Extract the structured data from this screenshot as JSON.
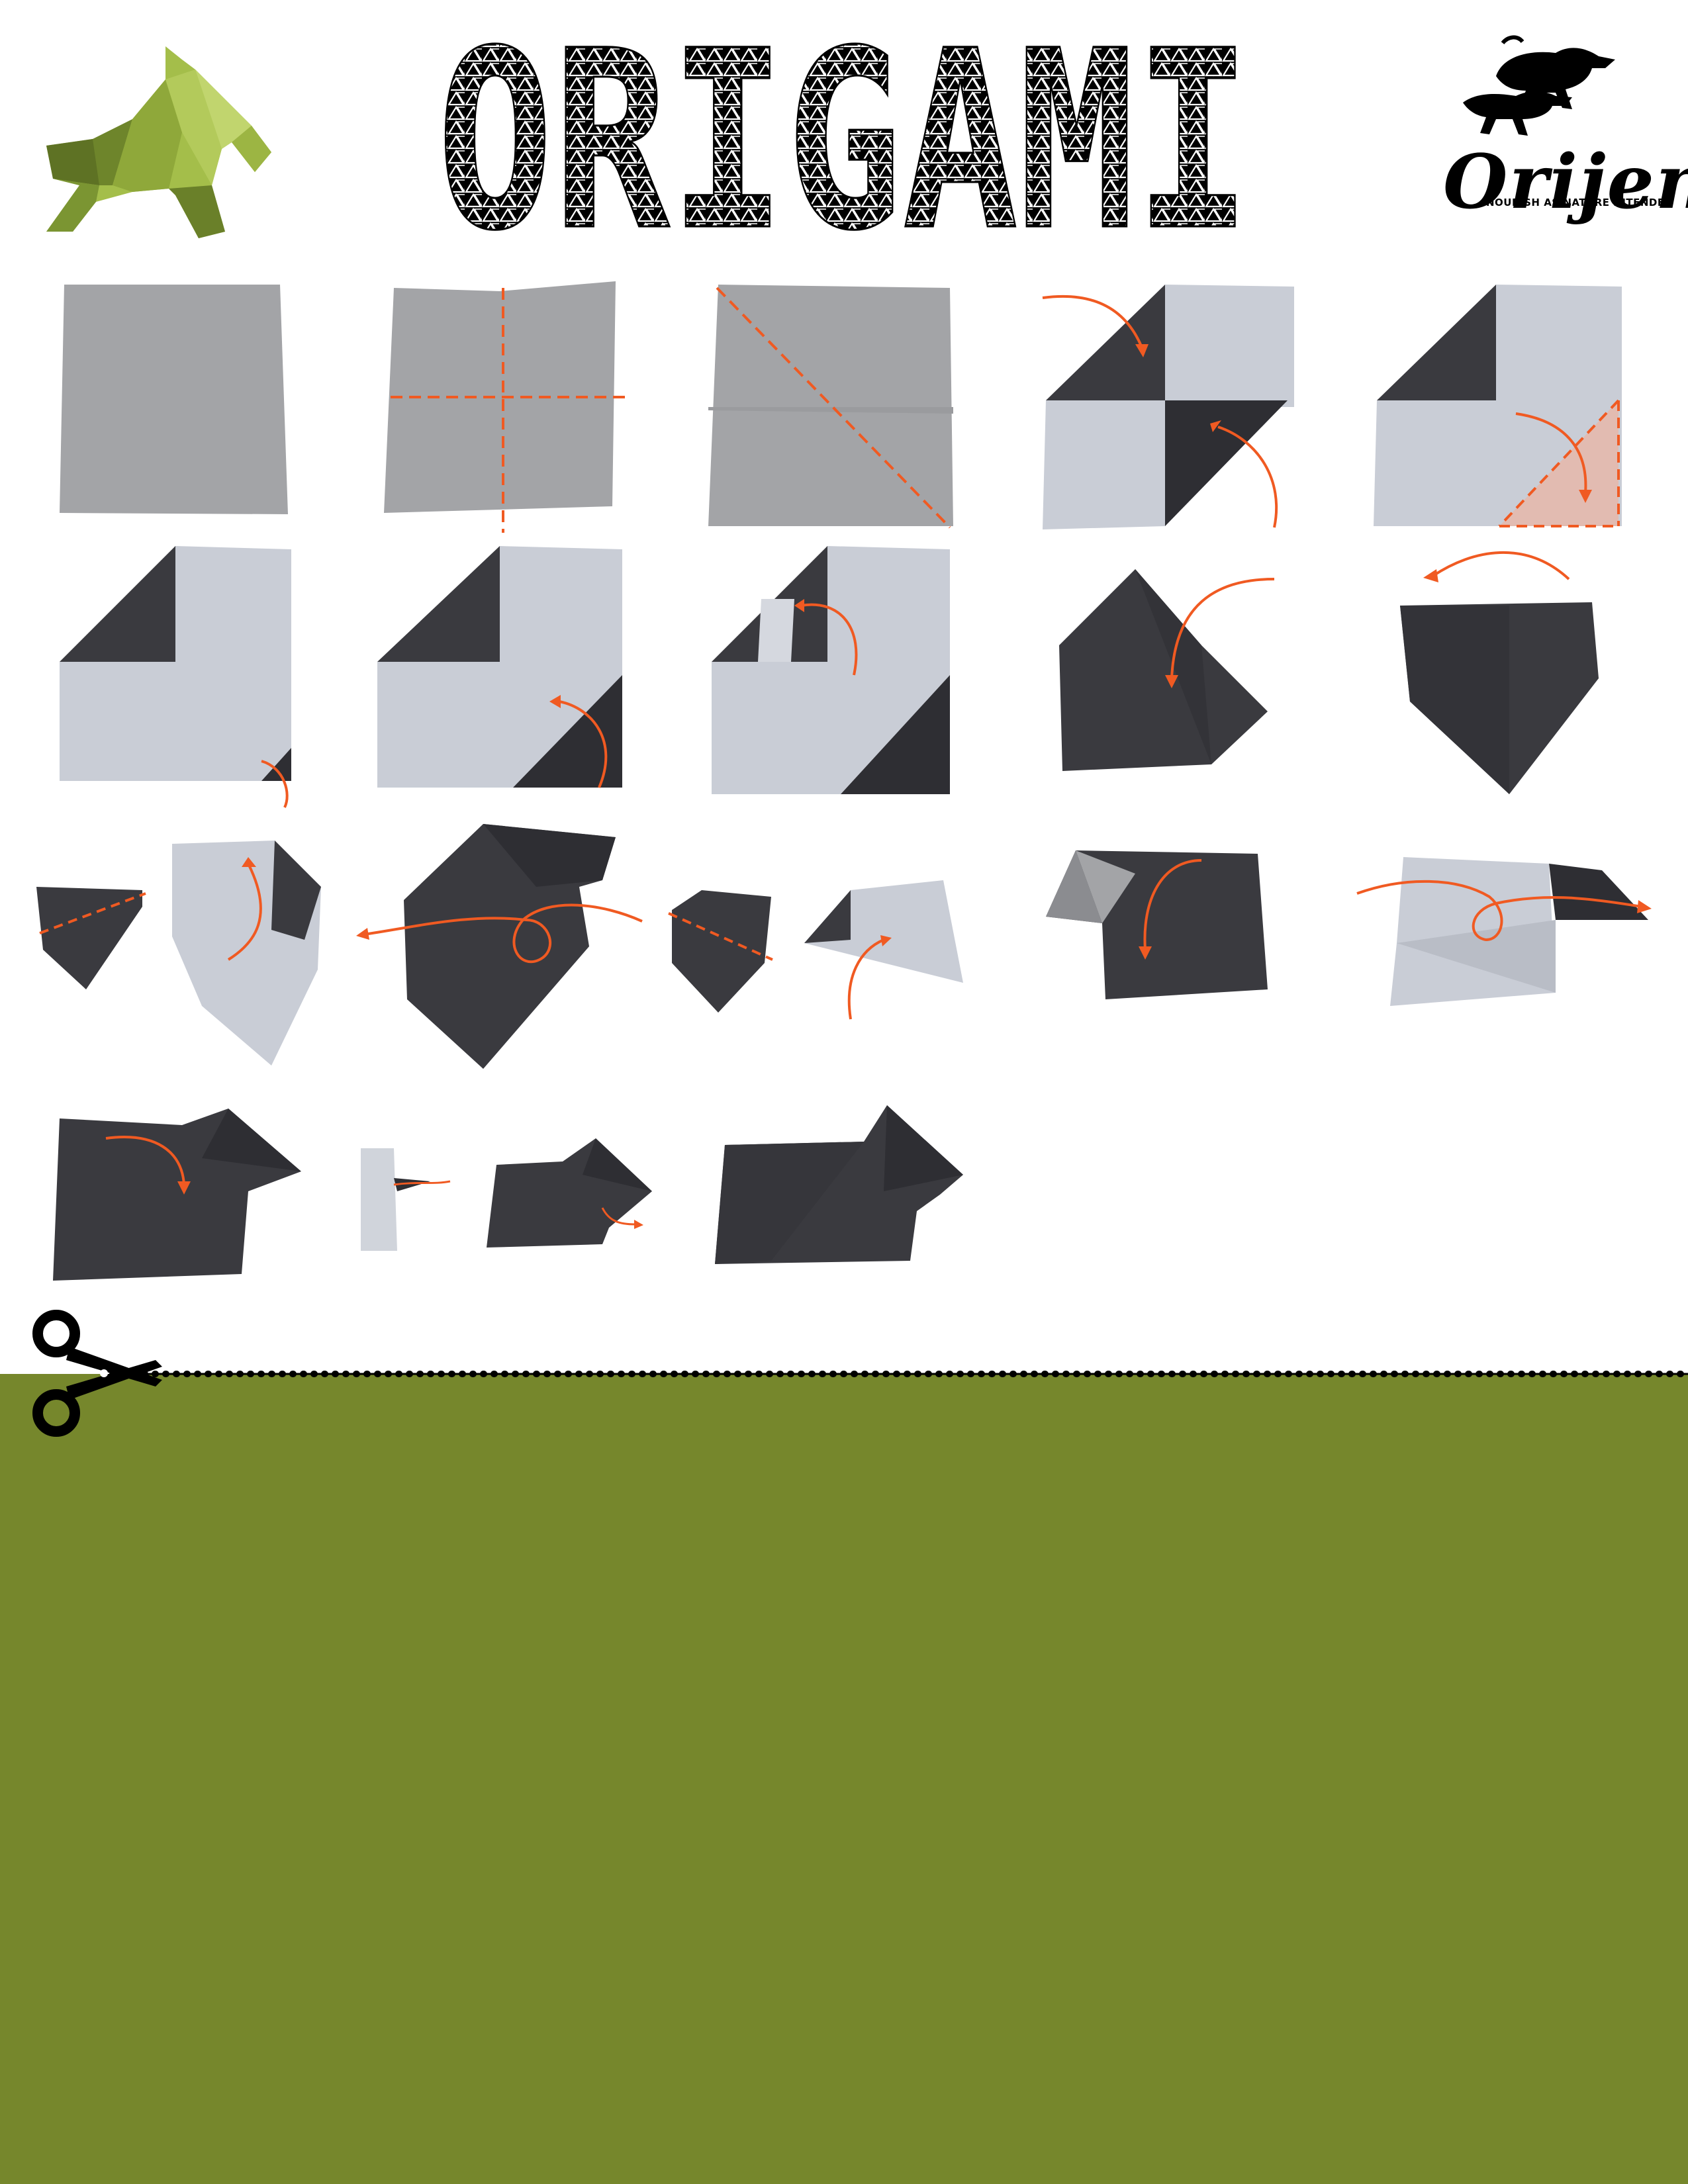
{
  "header": {
    "title": "ORIGAMI",
    "brand": {
      "name": "Orijen",
      "tagline": "NOURISH AS NATURE INTENDED"
    }
  },
  "colors": {
    "accent_green": "#76872C",
    "dog_green_light": "#A4BE4A",
    "dog_green_dark": "#5E7224",
    "paper_white": "#C9CDD6",
    "paper_gray": "#A3A4A7",
    "paper_black": "#3A3A3F",
    "arrow_orange": "#F05A22"
  },
  "icons": [
    "origami-dog-logo",
    "running-dogs-logo",
    "scissors-icon"
  ],
  "steps_count": 22
}
